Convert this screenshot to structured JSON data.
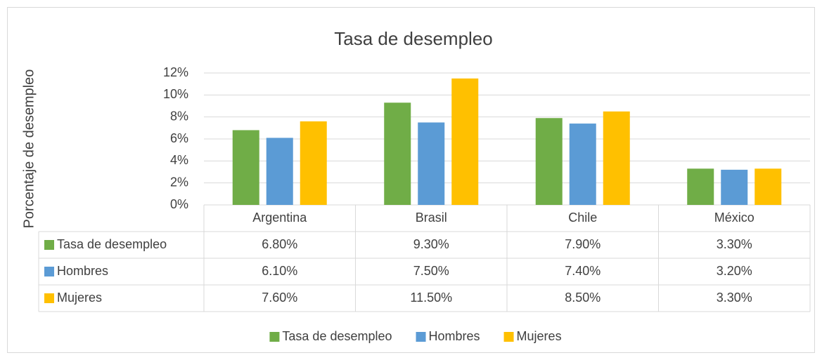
{
  "chart_data": {
    "type": "bar",
    "title": "Tasa de desempleo",
    "y_label": "Porcentaje de desempleo",
    "categories": [
      "Argentina",
      "Brasil",
      "Chile",
      "México"
    ],
    "series": [
      {
        "name": "Tasa de desempleo",
        "color": "#70ad47",
        "values": [
          6.8,
          9.3,
          7.9,
          3.3
        ],
        "value_labels": [
          "6.80%",
          "9.30%",
          "7.90%",
          "3.30%"
        ]
      },
      {
        "name": "Hombres",
        "color": "#5b9bd5",
        "values": [
          6.1,
          7.5,
          7.4,
          3.2
        ],
        "value_labels": [
          "6.10%",
          "7.50%",
          "7.40%",
          "3.20%"
        ]
      },
      {
        "name": "Mujeres",
        "color": "#ffc000",
        "values": [
          7.6,
          11.5,
          8.5,
          3.3
        ],
        "value_labels": [
          "7.60%",
          "11.50%",
          "8.50%",
          "3.30%"
        ]
      }
    ],
    "ylim": [
      0,
      12
    ],
    "yticks": [
      {
        "value": 0,
        "label": "0%"
      },
      {
        "value": 2,
        "label": "2%"
      },
      {
        "value": 4,
        "label": "4%"
      },
      {
        "value": 6,
        "label": "6%"
      },
      {
        "value": 8,
        "label": "8%"
      },
      {
        "value": 10,
        "label": "10%"
      },
      {
        "value": 12,
        "label": "12%"
      }
    ],
    "grid": true,
    "legend": "bottom",
    "data_table": true
  }
}
